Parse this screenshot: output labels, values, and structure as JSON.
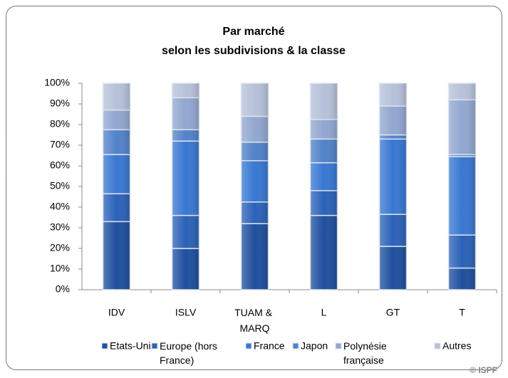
{
  "chart_data": {
    "type": "stacked_bar_100",
    "title": "Par marché",
    "subtitle": "selon les subdivisions & la classe",
    "source": "© ISPF",
    "categories": [
      "IDV",
      "ISLV",
      "TUAM & MARQ",
      "L",
      "GT",
      "T"
    ],
    "series": [
      {
        "name": "Etats-Unis",
        "color": "#1f4f9e",
        "values": [
          33,
          20,
          32,
          36,
          21,
          10.5
        ]
      },
      {
        "name": "Europe (hors France)",
        "color": "#2b62b8",
        "values": [
          13.5,
          16,
          10.5,
          12,
          15.5,
          16
        ]
      },
      {
        "name": "France",
        "color": "#3877d2",
        "values": [
          19,
          36,
          20,
          13.5,
          36.5,
          38
        ]
      },
      {
        "name": "Japon",
        "color": "#5282c9",
        "values": [
          12,
          5.5,
          9,
          11.5,
          2,
          1
        ]
      },
      {
        "name": "Polynésie française",
        "color": "#91a7d0",
        "values": [
          9.5,
          15.5,
          12.5,
          9.5,
          14,
          26.5
        ]
      },
      {
        "name": "Autres",
        "color": "#b6c1d9",
        "values": [
          13,
          7,
          16,
          17.5,
          11,
          8
        ]
      }
    ],
    "ylim": [
      0,
      100
    ],
    "yticks": [
      {
        "value": 0,
        "label": "0%"
      },
      {
        "value": 10,
        "label": "10%"
      },
      {
        "value": 20,
        "label": "20%"
      },
      {
        "value": 30,
        "label": "30%"
      },
      {
        "value": 40,
        "label": "40%"
      },
      {
        "value": 50,
        "label": "50%"
      },
      {
        "value": 60,
        "label": "60%"
      },
      {
        "value": 70,
        "label": "70%"
      },
      {
        "value": 80,
        "label": "80%"
      },
      {
        "value": 90,
        "label": "90%"
      },
      {
        "value": 100,
        "label": "100%"
      }
    ],
    "legend": "bottom"
  }
}
